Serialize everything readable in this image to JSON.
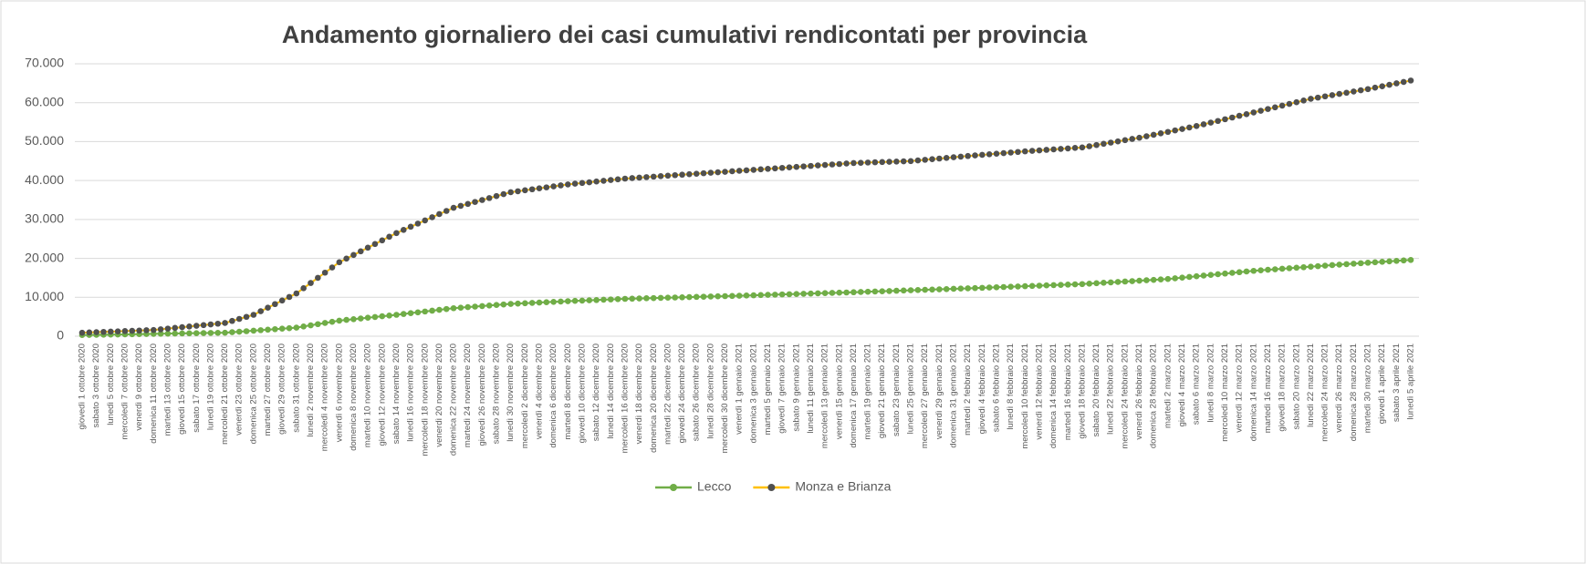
{
  "chart_data": {
    "type": "line",
    "title": "Andamento giornaliero dei casi cumulativi rendicontati per provincia",
    "categories": [
      "giovedì 1 ottobre 2020",
      null,
      "sabato 3 ottobre 2020",
      null,
      "lunedì 5 ottobre 2020",
      null,
      "mercoledì 7 ottobre 2020",
      null,
      "venerdì 9 ottobre 2020",
      null,
      "domenica 11 ottobre 2020",
      null,
      "martedì 13 ottobre 2020",
      null,
      "giovedì 15 ottobre 2020",
      null,
      "sabato 17 ottobre 2020",
      null,
      "lunedì 19 ottobre 2020",
      null,
      "mercoledì 21 ottobre 2020",
      null,
      "venerdì 23 ottobre 2020",
      null,
      "domenica 25 ottobre 2020",
      null,
      "martedì 27 ottobre 2020",
      null,
      "giovedì 29 ottobre 2020",
      null,
      "sabato 31 ottobre 2020",
      null,
      "lunedì 2 novembre 2020",
      null,
      "mercoledì 4 novembre 2020",
      null,
      "venerdì 6 novembre 2020",
      null,
      "domenica 8 novembre 2020",
      null,
      "martedì 10 novembre 2020",
      null,
      "giovedì 12 novembre 2020",
      null,
      "sabato 14 novembre 2020",
      null,
      "lunedì 16 novembre 2020",
      null,
      "mercoledì 18 novembre 2020",
      null,
      "venerdì 20 novembre 2020",
      null,
      "domenica 22 novembre 2020",
      null,
      "martedì 24 novembre 2020",
      null,
      "giovedì 26 novembre 2020",
      null,
      "sabato 28 novembre 2020",
      null,
      "lunedì 30 novembre 2020",
      null,
      "mercoledì 2 dicembre 2020",
      null,
      "venerdì 4 dicembre 2020",
      null,
      "domenica 6 dicembre 2020",
      null,
      "martedì 8 dicembre 2020",
      null,
      "giovedì 10 dicembre 2020",
      null,
      "sabato 12 dicembre 2020",
      null,
      "lunedì 14 dicembre 2020",
      null,
      "mercoledì 16 dicembre 2020",
      null,
      "venerdì 18 dicembre 2020",
      null,
      "domenica 20 dicembre 2020",
      null,
      "martedì 22 dicembre 2020",
      null,
      "giovedì 24 dicembre 2020",
      null,
      "sabato 26 dicembre 2020",
      null,
      "lunedì 28 dicembre 2020",
      null,
      "mercoledì 30 dicembre 2020",
      null,
      "venerdì 1 gennaio 2021",
      null,
      "domenica 3 gennaio 2021",
      null,
      "martedì 5 gennaio 2021",
      null,
      "giovedì 7 gennaio 2021",
      null,
      "sabato 9 gennaio 2021",
      null,
      "lunedì 11 gennaio 2021",
      null,
      "mercoledì 13 gennaio 2021",
      null,
      "venerdì 15 gennaio 2021",
      null,
      "domenica 17 gennaio 2021",
      null,
      "martedì 19 gennaio 2021",
      null,
      "giovedì 21 gennaio 2021",
      null,
      "sabato 23 gennaio 2021",
      null,
      "lunedì 25 gennaio 2021",
      null,
      "mercoledì 27 gennaio 2021",
      null,
      "venerdì 29 gennaio 2021",
      null,
      "domenica 31 gennaio 2021",
      null,
      "martedì 2 febbraio 2021",
      null,
      "giovedì 4 febbraio 2021",
      null,
      "sabato 6 febbraio 2021",
      null,
      "lunedì 8 febbraio 2021",
      null,
      "mercoledì 10 febbraio 2021",
      null,
      "venerdì 12 febbraio 2021",
      null,
      "domenica 14 febbraio 2021",
      null,
      "martedì 16 febbraio 2021",
      null,
      "giovedì 18 febbraio 2021",
      null,
      "sabato 20 febbraio 2021",
      null,
      "lunedì 22 febbraio 2021",
      null,
      "mercoledì 24 febbraio 2021",
      null,
      "venerdì 26 febbraio 2021",
      null,
      "domenica 28 febbraio 2021",
      null,
      "martedì 2 marzo 2021",
      null,
      "giovedì 4 marzo 2021",
      null,
      "sabato 6 marzo 2021",
      null,
      "lunedì 8 marzo 2021",
      null,
      "mercoledì 10 marzo 2021",
      null,
      "venerdì 12 marzo 2021",
      null,
      "domenica 14 marzo 2021",
      null,
      "martedì 16 marzo 2021",
      null,
      "giovedì 18 marzo 2021",
      null,
      "sabato 20 marzo 2021",
      null,
      "lunedì 22 marzo 2021",
      null,
      "mercoledì 24 marzo 2021",
      null,
      "venerdì 26 marzo 2021",
      null,
      "domenica 28 marzo 2021",
      null,
      "martedì 30 marzo 2021",
      null,
      "giovedì 1 aprile 2021",
      null,
      "sabato 3 aprile 2021",
      null,
      "lunedì 5 aprile 2021"
    ],
    "series": [
      {
        "name": "Lecco",
        "color": "#70ad47",
        "marker_color": "#70ad47",
        "values": [
          300,
          330,
          360,
          390,
          420,
          450,
          480,
          510,
          540,
          570,
          600,
          630,
          660,
          690,
          720,
          750,
          780,
          810,
          840,
          870,
          900,
          1030,
          1160,
          1290,
          1420,
          1550,
          1680,
          1810,
          1940,
          2070,
          2200,
          2500,
          2800,
          3100,
          3400,
          3700,
          4000,
          4190,
          4380,
          4560,
          4750,
          4940,
          5130,
          5310,
          5500,
          5710,
          5930,
          6140,
          6350,
          6560,
          6780,
          6990,
          7200,
          7340,
          7480,
          7610,
          7750,
          7890,
          8030,
          8160,
          8300,
          8390,
          8480,
          8560,
          8650,
          8740,
          8830,
          8910,
          9000,
          9080,
          9150,
          9230,
          9300,
          9380,
          9450,
          9530,
          9600,
          9650,
          9700,
          9750,
          9800,
          9850,
          9900,
          9950,
          10000,
          10050,
          10100,
          10150,
          10200,
          10250,
          10300,
          10350,
          10400,
          10460,
          10510,
          10570,
          10630,
          10680,
          10740,
          10790,
          10850,
          10910,
          10960,
          11020,
          11080,
          11130,
          11190,
          11240,
          11300,
          11360,
          11430,
          11490,
          11550,
          11610,
          11680,
          11740,
          11800,
          11860,
          11930,
          11990,
          12050,
          12110,
          12180,
          12240,
          12300,
          12370,
          12440,
          12510,
          12580,
          12640,
          12710,
          12780,
          12850,
          12920,
          12990,
          13060,
          13130,
          13190,
          13260,
          13330,
          13400,
          13510,
          13620,
          13730,
          13830,
          13940,
          14050,
          14160,
          14270,
          14380,
          14480,
          14590,
          14700,
          14880,
          15050,
          15230,
          15400,
          15580,
          15750,
          15930,
          16100,
          16280,
          16450,
          16630,
          16800,
          16930,
          17070,
          17200,
          17330,
          17470,
          17600,
          17730,
          17870,
          18000,
          18130,
          18270,
          18400,
          18520,
          18640,
          18760,
          18880,
          19000,
          19120,
          19240,
          19360,
          19480,
          19600
        ]
      },
      {
        "name": "Monza e Brianza",
        "color": "#ffc000",
        "marker_color": "#505050",
        "values": [
          900,
          970,
          1040,
          1110,
          1180,
          1250,
          1320,
          1390,
          1460,
          1530,
          1600,
          1780,
          1960,
          2140,
          2320,
          2500,
          2680,
          2860,
          3040,
          3220,
          3400,
          3925,
          4450,
          4975,
          5500,
          6420,
          7330,
          8250,
          9170,
          10080,
          11000,
          12330,
          13670,
          15000,
          16330,
          17670,
          19000,
          19940,
          20880,
          21810,
          22750,
          23690,
          24630,
          25560,
          26500,
          27310,
          28130,
          28940,
          29750,
          30560,
          31380,
          32190,
          33000,
          33500,
          34000,
          34500,
          35000,
          35500,
          36000,
          36500,
          37000,
          37250,
          37500,
          37750,
          38000,
          38250,
          38500,
          38750,
          39000,
          39190,
          39380,
          39560,
          39750,
          39940,
          40130,
          40310,
          40500,
          40630,
          40750,
          40880,
          41000,
          41130,
          41250,
          41380,
          41500,
          41630,
          41750,
          41880,
          42000,
          42130,
          42250,
          42380,
          42500,
          42630,
          42750,
          42880,
          43000,
          43130,
          43250,
          43380,
          43500,
          43630,
          43750,
          43880,
          44000,
          44130,
          44250,
          44380,
          44500,
          44560,
          44630,
          44690,
          44750,
          44810,
          44880,
          44940,
          45000,
          45160,
          45330,
          45490,
          45650,
          45810,
          45980,
          46140,
          46300,
          46450,
          46600,
          46750,
          46900,
          47050,
          47200,
          47350,
          47500,
          47630,
          47750,
          47880,
          48000,
          48130,
          48250,
          48380,
          48500,
          48810,
          49130,
          49440,
          49750,
          50060,
          50380,
          50690,
          51000,
          51380,
          51750,
          52130,
          52500,
          52880,
          53250,
          53630,
          54000,
          54440,
          54880,
          55310,
          55750,
          56190,
          56630,
          57060,
          57500,
          57940,
          58380,
          58810,
          59250,
          59690,
          60130,
          60560,
          61000,
          61310,
          61630,
          61940,
          62250,
          62560,
          62880,
          63190,
          63500,
          63870,
          64230,
          64600,
          64970,
          65330,
          65700
        ]
      }
    ],
    "ylim": [
      0,
      70000
    ],
    "yticks": [
      0,
      {
        "value": 10000,
        "label": "10.000"
      },
      {
        "value": 20000,
        "label": "20.000"
      },
      {
        "value": 30000,
        "label": "30.000"
      },
      {
        "value": 40000,
        "label": "40.000"
      },
      {
        "value": 50000,
        "label": "50.000"
      },
      {
        "value": 60000,
        "label": "60.000"
      },
      {
        "value": 70000,
        "label": "70.000"
      }
    ],
    "grid": true,
    "legend": "bottom"
  }
}
